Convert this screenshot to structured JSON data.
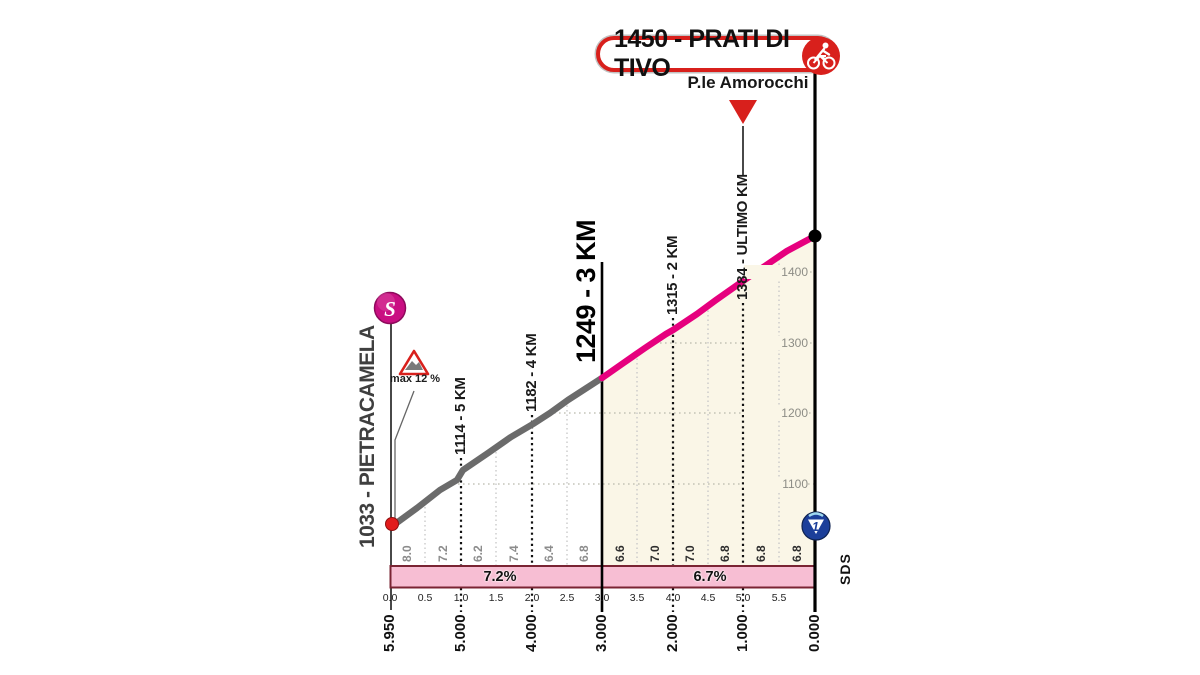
{
  "header": {
    "summit_badge": "1450 - PRATI DI TIVO",
    "place_label": "P.le Amorocchi"
  },
  "start": {
    "label": "1033 - PIETRACAMELA",
    "start_icon_letter": "S",
    "max_gradient_label": "max 12 %"
  },
  "km_marks": [
    "1114 - 5 KM",
    "1182 - 4 KM",
    "1249 - 3 KM",
    "1315 - 2 KM",
    "1384 - ULTIMO KM"
  ],
  "elevation_ticks": [
    "1400",
    "1300",
    "1200",
    "1100"
  ],
  "gradient_values": [
    "8.0",
    "7.2",
    "6.2",
    "7.4",
    "6.4",
    "6.8",
    "6.6",
    "7.0",
    "7.0",
    "6.8",
    "6.8",
    "6.8"
  ],
  "avg_bands": [
    "7.2%",
    "6.7%"
  ],
  "distance_ticks": [
    "0.0",
    "0.5",
    "1.0",
    "1.5",
    "2.0",
    "2.5",
    "3.0",
    "3.5",
    "4.0",
    "4.5",
    "5.0",
    "5.5"
  ],
  "km_to_go_labels": [
    "5.950",
    "5.000",
    "4.000",
    "3.000",
    "2.000",
    "1.000",
    "0.000"
  ],
  "gpm_badge": {
    "category": "1"
  },
  "credit": "SDS",
  "colors": {
    "giro_pink": "#e6007e",
    "profile_gray": "#6b6b6b",
    "band_fill": "#f7bed3",
    "band_border": "#7a2433",
    "cream_fill": "#faf6e7",
    "red": "#d8201c",
    "magenta_start": "#c90f82",
    "gpm_blue": "#1c3f9a"
  },
  "chart_data": {
    "type": "area",
    "title": "1450 - PRATI DI TIVO",
    "subtitle": "P.le Amorocchi",
    "x_unit": "km to go",
    "y_unit": "elevation m",
    "points": [
      {
        "km_to_go": 5.95,
        "elevation": 1033,
        "place": "Pietracamela"
      },
      {
        "km_to_go": 5.0,
        "elevation": 1114
      },
      {
        "km_to_go": 4.0,
        "elevation": 1182
      },
      {
        "km_to_go": 3.0,
        "elevation": 1249
      },
      {
        "km_to_go": 2.0,
        "elevation": 1315
      },
      {
        "km_to_go": 1.0,
        "elevation": 1384,
        "place": "Ultimo KM"
      },
      {
        "km_to_go": 0.0,
        "elevation": 1450,
        "place": "Prati di Tivo - P.le Amorocchi"
      }
    ],
    "gradient_per_half_km_pct": [
      8.0,
      7.2,
      6.2,
      7.4,
      6.4,
      6.8,
      6.6,
      7.0,
      7.0,
      6.8,
      6.8,
      6.8
    ],
    "avg_gradient_segments": [
      {
        "segment": "first 3 km shown (gray)",
        "value_pct": 7.2
      },
      {
        "segment": "last 3 km (pink)",
        "value_pct": 6.7
      }
    ],
    "max_gradient_pct": 12,
    "gpm_category": "1",
    "ylim": [
      1033,
      1450
    ],
    "y_ticks": [
      1100,
      1200,
      1300,
      1400
    ],
    "grid": "dotted, drawn below profile only",
    "highlight": "last 3 km drawn in Giro pink over cream fill"
  }
}
